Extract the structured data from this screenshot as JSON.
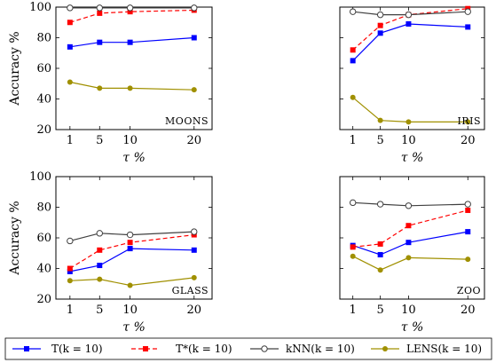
{
  "chart_data": [
    {
      "type": "line",
      "label": "MOONS",
      "x_ticks": [
        "1",
        "5",
        "10",
        "20"
      ],
      "xlabel": "τ %",
      "ylabel": "Accuracy %",
      "ylim": [
        20,
        100
      ],
      "y_ticks": [
        "20",
        "40",
        "60",
        "80",
        "100"
      ],
      "show_y_ticklabels": true,
      "series": [
        {
          "name": "T(k = 10)",
          "values": [
            74,
            77,
            77,
            80
          ]
        },
        {
          "name": "T*(k = 10)",
          "values": [
            90,
            96,
            97,
            98
          ]
        },
        {
          "name": "kNN(k = 10)",
          "values": [
            99.5,
            99.5,
            99.5,
            99.5
          ]
        },
        {
          "name": "LENS(k = 10)",
          "values": [
            51,
            47,
            47,
            46
          ]
        }
      ]
    },
    {
      "type": "line",
      "label": "IRIS",
      "x_ticks": [
        "1",
        "5",
        "10",
        "20"
      ],
      "xlabel": "τ %",
      "ylabel": "",
      "ylim": [
        20,
        100
      ],
      "y_ticks": [
        "20",
        "40",
        "60",
        "80",
        "100"
      ],
      "show_y_ticklabels": false,
      "series": [
        {
          "name": "T(k = 10)",
          "values": [
            65,
            83,
            89,
            87
          ]
        },
        {
          "name": "T*(k = 10)",
          "values": [
            72,
            88,
            95,
            99
          ]
        },
        {
          "name": "kNN(k = 10)",
          "values": [
            97,
            95,
            95,
            97
          ]
        },
        {
          "name": "LENS(k = 10)",
          "values": [
            41,
            26,
            25,
            25
          ]
        }
      ]
    },
    {
      "type": "line",
      "label": "GLASS",
      "x_ticks": [
        "1",
        "5",
        "10",
        "20"
      ],
      "xlabel": "τ %",
      "ylabel": "Accuracy %",
      "ylim": [
        20,
        100
      ],
      "y_ticks": [
        "20",
        "40",
        "60",
        "80",
        "100"
      ],
      "show_y_ticklabels": true,
      "series": [
        {
          "name": "T(k = 10)",
          "values": [
            38,
            42,
            53,
            52
          ]
        },
        {
          "name": "T*(k = 10)",
          "values": [
            40,
            52,
            57,
            62
          ]
        },
        {
          "name": "kNN(k = 10)",
          "values": [
            58,
            63,
            62,
            64
          ]
        },
        {
          "name": "LENS(k = 10)",
          "values": [
            32,
            33,
            29,
            34
          ]
        }
      ]
    },
    {
      "type": "line",
      "label": "ZOO",
      "x_ticks": [
        "1",
        "5",
        "10",
        "20"
      ],
      "xlabel": "τ %",
      "ylabel": "",
      "ylim": [
        20,
        100
      ],
      "y_ticks": [
        "20",
        "40",
        "60",
        "80",
        "100"
      ],
      "show_y_ticklabels": false,
      "series": [
        {
          "name": "T(k = 10)",
          "values": [
            55,
            49,
            57,
            64
          ]
        },
        {
          "name": "T*(k = 10)",
          "values": [
            54,
            56,
            68,
            78
          ]
        },
        {
          "name": "kNN(k = 10)",
          "values": [
            83,
            82,
            81,
            82
          ]
        },
        {
          "name": "LENS(k = 10)",
          "values": [
            48,
            39,
            47,
            46
          ]
        }
      ]
    }
  ],
  "legend": {
    "placement": "bottom",
    "items": [
      {
        "label": "T(k = 10)",
        "color": "#0000ff",
        "dash": "solid",
        "marker": "square"
      },
      {
        "label": "T*(k = 10)",
        "color": "#ff0000",
        "dash": "dashed",
        "marker": "square"
      },
      {
        "label": "kNN(k = 10)",
        "color": "#404040",
        "dash": "solid",
        "marker": "circle-open"
      },
      {
        "label": "LENS(k = 10)",
        "color": "#a09000",
        "dash": "solid",
        "marker": "circle"
      }
    ]
  },
  "series_styles": [
    {
      "color": "#0000ff",
      "dash": "solid",
      "marker": "square"
    },
    {
      "color": "#ff0000",
      "dash": "dashed",
      "marker": "square"
    },
    {
      "color": "#404040",
      "dash": "solid",
      "marker": "circle-open"
    },
    {
      "color": "#a09000",
      "dash": "solid",
      "marker": "circle"
    }
  ]
}
